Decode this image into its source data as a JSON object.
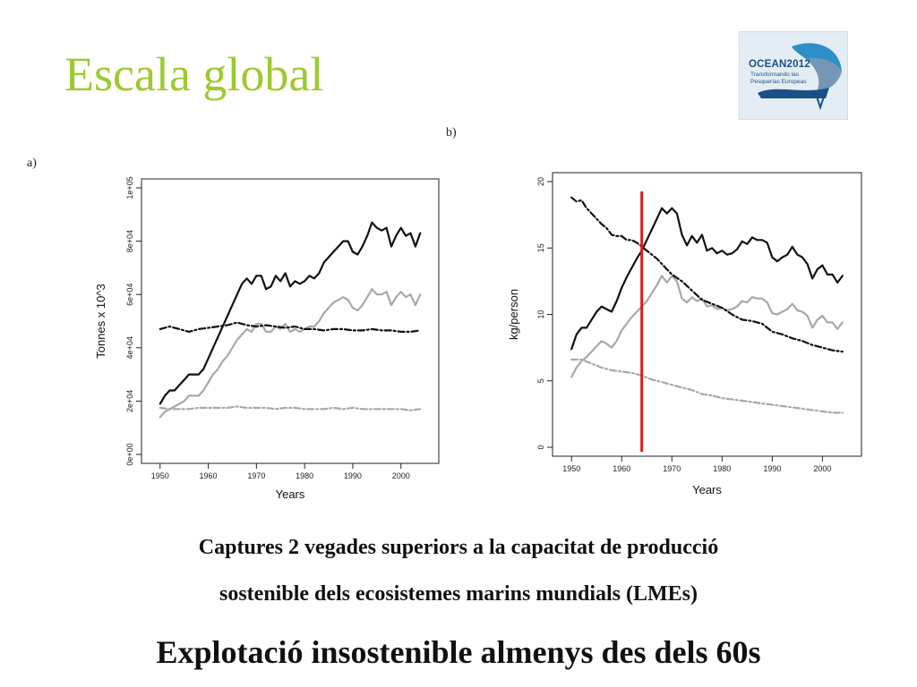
{
  "slide": {
    "title": "Escala global",
    "logo": {
      "name": "OCEAN2012",
      "subtitle": "Transformando las Pesquerías Europeas"
    },
    "panel_a_label": "a)",
    "panel_b_label": "b)",
    "caption_line1": "Captures 2 vegades superiors a la capacitat de producció",
    "caption_line2": "sostenible dels ecosistemes marins mundials (LMEs)",
    "conclusion": "Explotació insostenible almenys des dels 60s"
  },
  "chart_data": [
    {
      "type": "line",
      "panel": "a)",
      "xlabel": "Years",
      "ylabel": "Tonnes x 10^3",
      "xlim": [
        1948,
        2006
      ],
      "ylim": [
        0,
        100000
      ],
      "x_ticks": [
        1950,
        1960,
        1970,
        1980,
        1990,
        2000
      ],
      "x_tick_labels": [
        "1950",
        "1960",
        "1970",
        "1980",
        "1990",
        "2000"
      ],
      "y_ticks": [
        0,
        20000,
        40000,
        60000,
        80000,
        100000
      ],
      "y_tick_labels": [
        "0e+00",
        "2e+04",
        "4e+04",
        "6e+04",
        "8e+04",
        "1e+05"
      ],
      "grid": false,
      "series": [
        {
          "color": "#111111",
          "style": "solid",
          "x": [
            1950,
            1951,
            1952,
            1953,
            1954,
            1955,
            1956,
            1957,
            1958,
            1959,
            1960,
            1961,
            1962,
            1963,
            1964,
            1965,
            1966,
            1967,
            1968,
            1969,
            1970,
            1971,
            1972,
            1973,
            1974,
            1975,
            1976,
            1977,
            1978,
            1979,
            1980,
            1981,
            1982,
            1983,
            1984,
            1985,
            1986,
            1987,
            1988,
            1989,
            1990,
            1991,
            1992,
            1993,
            1994,
            1995,
            1996,
            1997,
            1998,
            1999,
            2000,
            2001,
            2002,
            2003,
            2004
          ],
          "values": [
            19000,
            22000,
            24000,
            24000,
            26000,
            28000,
            30000,
            30000,
            30000,
            32000,
            36000,
            40000,
            44000,
            48000,
            52000,
            56000,
            60000,
            64000,
            66000,
            64000,
            67000,
            67000,
            62000,
            63000,
            67000,
            65000,
            68000,
            63000,
            65000,
            64000,
            65000,
            67000,
            66000,
            68000,
            72000,
            74000,
            76000,
            78000,
            80000,
            80000,
            76000,
            75000,
            78000,
            82000,
            87000,
            85000,
            84000,
            85000,
            78000,
            82000,
            85000,
            82000,
            83000,
            78000,
            83000
          ]
        },
        {
          "color": "#a8a8a8",
          "style": "solid",
          "x": [
            1950,
            1951,
            1952,
            1953,
            1954,
            1955,
            1956,
            1957,
            1958,
            1959,
            1960,
            1961,
            1962,
            1963,
            1964,
            1965,
            1966,
            1967,
            1968,
            1969,
            1970,
            1971,
            1972,
            1973,
            1974,
            1975,
            1976,
            1977,
            1978,
            1979,
            1980,
            1981,
            1982,
            1983,
            1984,
            1985,
            1986,
            1987,
            1988,
            1989,
            1990,
            1991,
            1992,
            1993,
            1994,
            1995,
            1996,
            1997,
            1998,
            1999,
            2000,
            2001,
            2002,
            2003,
            2004
          ],
          "values": [
            14000,
            16000,
            17000,
            18000,
            19000,
            20000,
            22000,
            22000,
            22000,
            24000,
            27000,
            30000,
            32000,
            35000,
            37000,
            40000,
            43000,
            45000,
            47000,
            46000,
            49000,
            49000,
            46000,
            46000,
            48000,
            47000,
            49000,
            46000,
            47000,
            46000,
            47000,
            48000,
            48000,
            50000,
            53000,
            55000,
            57000,
            58000,
            59000,
            58000,
            55000,
            54000,
            56000,
            59000,
            62000,
            60000,
            60000,
            61000,
            56000,
            59000,
            61000,
            59000,
            60000,
            56000,
            60000
          ]
        },
        {
          "color": "#111111",
          "style": "dashed",
          "x": [
            1950,
            1952,
            1954,
            1956,
            1958,
            1960,
            1962,
            1964,
            1966,
            1968,
            1970,
            1972,
            1974,
            1976,
            1978,
            1980,
            1982,
            1984,
            1986,
            1988,
            1990,
            1992,
            1994,
            1996,
            1998,
            2000,
            2002,
            2004
          ],
          "values": [
            47000,
            48000,
            47000,
            46000,
            47000,
            47500,
            48000,
            48500,
            49500,
            48500,
            48000,
            48500,
            48000,
            47500,
            48000,
            47000,
            47000,
            46500,
            47000,
            47000,
            46500,
            46500,
            47000,
            46500,
            46500,
            46000,
            46000,
            46500
          ]
        },
        {
          "color": "#a8a8a8",
          "style": "dashed",
          "x": [
            1950,
            1952,
            1954,
            1956,
            1958,
            1960,
            1962,
            1964,
            1966,
            1968,
            1970,
            1972,
            1974,
            1976,
            1978,
            1980,
            1982,
            1984,
            1986,
            1988,
            1990,
            1992,
            1994,
            1996,
            1998,
            2000,
            2002,
            2004
          ],
          "values": [
            17500,
            17000,
            17000,
            17000,
            17500,
            17500,
            17500,
            17500,
            18000,
            17500,
            17500,
            17500,
            17000,
            17500,
            17500,
            17000,
            17000,
            17000,
            17500,
            17000,
            17500,
            17000,
            17000,
            17000,
            17000,
            17000,
            16500,
            17000
          ]
        }
      ]
    },
    {
      "type": "line",
      "panel": "b)",
      "xlabel": "Years",
      "ylabel": "kg/person",
      "xlim": [
        1948,
        2006
      ],
      "ylim": [
        0,
        20
      ],
      "x_ticks": [
        1950,
        1960,
        1970,
        1980,
        1990,
        2000
      ],
      "x_tick_labels": [
        "1950",
        "1960",
        "1970",
        "1980",
        "1990",
        "2000"
      ],
      "y_ticks": [
        0,
        5,
        10,
        15,
        20
      ],
      "y_tick_labels": [
        "0",
        "5",
        "10",
        "15",
        "20"
      ],
      "grid": false,
      "vertical_marker": {
        "x": 1964,
        "color": "#dd1c1c"
      },
      "series": [
        {
          "color": "#111111",
          "style": "solid",
          "x": [
            1950,
            1951,
            1952,
            1953,
            1954,
            1955,
            1956,
            1957,
            1958,
            1959,
            1960,
            1961,
            1962,
            1963,
            1964,
            1965,
            1966,
            1967,
            1968,
            1969,
            1970,
            1971,
            1972,
            1973,
            1974,
            1975,
            1976,
            1977,
            1978,
            1979,
            1980,
            1981,
            1982,
            1983,
            1984,
            1985,
            1986,
            1987,
            1988,
            1989,
            1990,
            1991,
            1992,
            1993,
            1994,
            1995,
            1996,
            1997,
            1998,
            1999,
            2000,
            2001,
            2002,
            2003,
            2004
          ],
          "values": [
            7.4,
            8.5,
            9.0,
            9.0,
            9.6,
            10.2,
            10.6,
            10.4,
            10.2,
            11.0,
            12.0,
            12.8,
            13.5,
            14.2,
            14.8,
            15.6,
            16.4,
            17.2,
            18.0,
            17.6,
            18.0,
            17.6,
            16.0,
            15.2,
            15.9,
            15.4,
            16.0,
            14.8,
            15.0,
            14.6,
            14.8,
            14.5,
            14.6,
            14.9,
            15.5,
            15.3,
            15.8,
            15.6,
            15.6,
            15.4,
            14.3,
            14.0,
            14.3,
            14.5,
            15.1,
            14.5,
            14.3,
            13.8,
            12.7,
            13.4,
            13.7,
            13.0,
            13.0,
            12.4,
            12.9
          ]
        },
        {
          "color": "#a8a8a8",
          "style": "solid",
          "x": [
            1950,
            1951,
            1952,
            1953,
            1954,
            1955,
            1956,
            1957,
            1958,
            1959,
            1960,
            1961,
            1962,
            1963,
            1964,
            1965,
            1966,
            1967,
            1968,
            1969,
            1970,
            1971,
            1972,
            1973,
            1974,
            1975,
            1976,
            1977,
            1978,
            1979,
            1980,
            1981,
            1982,
            1983,
            1984,
            1985,
            1986,
            1987,
            1988,
            1989,
            1990,
            1991,
            1992,
            1993,
            1994,
            1995,
            1996,
            1997,
            1998,
            1999,
            2000,
            2001,
            2002,
            2003,
            2004
          ],
          "values": [
            5.3,
            6.0,
            6.5,
            6.8,
            7.2,
            7.6,
            8.0,
            7.8,
            7.5,
            8.0,
            8.8,
            9.3,
            9.8,
            10.2,
            10.6,
            11.0,
            11.6,
            12.2,
            12.9,
            12.4,
            12.9,
            12.5,
            11.2,
            10.9,
            11.3,
            11.0,
            11.2,
            10.6,
            10.7,
            10.4,
            10.5,
            10.3,
            10.4,
            10.6,
            11.0,
            10.9,
            11.3,
            11.2,
            11.2,
            10.9,
            10.1,
            10.0,
            10.2,
            10.4,
            10.8,
            10.3,
            10.2,
            9.9,
            9.0,
            9.6,
            9.9,
            9.4,
            9.4,
            8.9,
            9.4
          ]
        },
        {
          "color": "#111111",
          "style": "dashed",
          "x": [
            1950,
            1951,
            1952,
            1953,
            1954,
            1955,
            1956,
            1957,
            1958,
            1959,
            1960,
            1961,
            1962,
            1963,
            1964,
            1965,
            1966,
            1967,
            1968,
            1969,
            1970,
            1972,
            1974,
            1976,
            1978,
            1980,
            1982,
            1984,
            1986,
            1988,
            1990,
            1992,
            1994,
            1996,
            1998,
            2000,
            2002,
            2004
          ],
          "values": [
            18.8,
            18.5,
            18.6,
            18.0,
            17.6,
            17.2,
            16.8,
            16.5,
            16.0,
            15.9,
            15.9,
            15.6,
            15.6,
            15.4,
            15.1,
            14.8,
            14.5,
            14.2,
            13.8,
            13.4,
            13.0,
            12.5,
            11.8,
            11.1,
            10.8,
            10.5,
            10.0,
            9.6,
            9.5,
            9.3,
            8.7,
            8.5,
            8.2,
            8.0,
            7.7,
            7.5,
            7.3,
            7.2
          ]
        },
        {
          "color": "#a8a8a8",
          "style": "dashed",
          "x": [
            1950,
            1952,
            1954,
            1956,
            1958,
            1960,
            1962,
            1964,
            1966,
            1968,
            1970,
            1972,
            1974,
            1976,
            1978,
            1980,
            1982,
            1984,
            1986,
            1988,
            1990,
            1992,
            1994,
            1996,
            1998,
            2000,
            2002,
            2004
          ],
          "values": [
            6.6,
            6.6,
            6.3,
            6.0,
            5.8,
            5.7,
            5.6,
            5.4,
            5.1,
            4.9,
            4.7,
            4.5,
            4.3,
            4.0,
            3.9,
            3.7,
            3.6,
            3.5,
            3.4,
            3.3,
            3.2,
            3.1,
            3.0,
            2.9,
            2.8,
            2.7,
            2.6,
            2.6
          ]
        }
      ]
    }
  ]
}
